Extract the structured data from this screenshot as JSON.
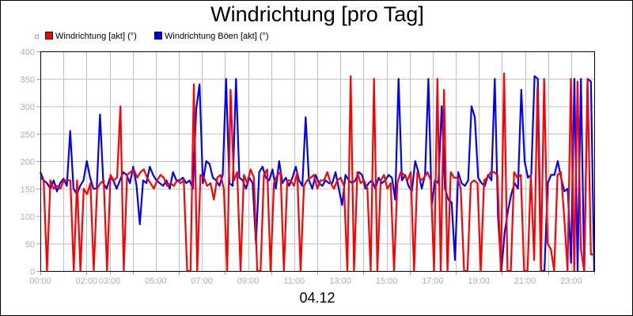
{
  "title": "Windrichtung [pro Tag]",
  "date_label": "04.12",
  "legend": [
    {
      "label": "Windrichtung [akt] (°)",
      "color": "#ff0000"
    },
    {
      "label": "Windrichtung Böen [akt] (°)",
      "color": "#0000ff"
    }
  ],
  "chart_data": {
    "type": "line",
    "title": "Windrichtung [pro Tag]",
    "xlabel": "04.12",
    "ylabel": "",
    "ylim": [
      0,
      400
    ],
    "yticks": [
      0,
      50,
      100,
      150,
      200,
      250,
      300,
      350,
      400
    ],
    "xlim_hours": [
      0,
      24
    ],
    "xtick_labels": [
      {
        "label": "00:00",
        "hour": 0
      },
      {
        "label": "02:00",
        "hour": 2
      },
      {
        "label": "03:00",
        "hour": 3
      },
      {
        "label": "05:00",
        "hour": 5
      },
      {
        "label": "07:00",
        "hour": 7
      },
      {
        "label": "09:00",
        "hour": 9
      },
      {
        "label": "11:00",
        "hour": 11
      },
      {
        "label": "13:00",
        "hour": 13
      },
      {
        "label": "15:00",
        "hour": 15
      },
      {
        "label": "17:00",
        "hour": 17
      },
      {
        "label": "19:00",
        "hour": 19
      },
      {
        "label": "21:00",
        "hour": 21
      },
      {
        "label": "23:00",
        "hour": 23
      }
    ],
    "grid": true,
    "legend_position": "top-left",
    "sample_interval_minutes": 10,
    "series": [
      {
        "name": "Windrichtung Böen [akt] (°)",
        "color": "#0000ff",
        "values": [
          180,
          165,
          160,
          150,
          165,
          145,
          160,
          168,
          155,
          255,
          150,
          140,
          155,
          165,
          200,
          170,
          150,
          150,
          285,
          160,
          150,
          170,
          165,
          150,
          165,
          180,
          175,
          160,
          190,
          155,
          85,
          165,
          160,
          190,
          175,
          165,
          160,
          155,
          165,
          150,
          180,
          165,
          165,
          170,
          160,
          165,
          150,
          295,
          340,
          160,
          200,
          195,
          170,
          165,
          155,
          175,
          350,
          160,
          155,
          350,
          170,
          165,
          150,
          170,
          160,
          50,
          180,
          190,
          170,
          165,
          185,
          150,
          200,
          160,
          170,
          155,
          170,
          190,
          165,
          155,
          280,
          165,
          150,
          175,
          160,
          155,
          165,
          160,
          160,
          180,
          150,
          120,
          175,
          165,
          160,
          165,
          180,
          175,
          150,
          160,
          165,
          150,
          170,
          160,
          165,
          175,
          170,
          130,
          350,
          165,
          175,
          155,
          145,
          200,
          180,
          150,
          175,
          350,
          120,
          165,
          160,
          300,
          150,
          130,
          125,
          20,
          180,
          160,
          155,
          165,
          300,
          280,
          170,
          160,
          155,
          175,
          165,
          350,
          100,
          0,
          70,
          110,
          140,
          160,
          150,
          330,
          200,
          170,
          175,
          355,
          350,
          0,
          0,
          160,
          175,
          175,
          200,
          170,
          145,
          150,
          15,
          350,
          0,
          350,
          0,
          350,
          345,
          0
        ]
      },
      {
        "name": "Windrichtung [akt] (°)",
        "color": "#ff0000",
        "values": [
          170,
          165,
          0,
          165,
          150,
          155,
          150,
          165,
          165,
          165,
          0,
          165,
          0,
          150,
          140,
          160,
          0,
          150,
          160,
          165,
          0,
          175,
          165,
          170,
          300,
          0,
          175,
          180,
          185,
          170,
          180,
          185,
          170,
          160,
          150,
          165,
          175,
          170,
          155,
          160,
          155,
          165,
          160,
          165,
          0,
          0,
          340,
          0,
          175,
          170,
          155,
          160,
          130,
          170,
          175,
          150,
          0,
          330,
          165,
          180,
          0,
          175,
          160,
          185,
          170,
          0,
          0,
          175,
          185,
          0,
          160,
          175,
          180,
          0,
          165,
          165,
          155,
          180,
          0,
          155,
          165,
          170,
          175,
          150,
          165,
          165,
          180,
          160,
          150,
          165,
          170,
          155,
          0,
          355,
          0,
          180,
          160,
          165,
          150,
          0,
          350,
          0,
          165,
          175,
          150,
          160,
          0,
          160,
          180,
          175,
          165,
          180,
          0,
          180,
          165,
          170,
          180,
          165,
          0,
          350,
          0,
          330,
          0,
          180,
          170,
          170,
          150,
          0,
          0,
          160,
          165,
          160,
          0,
          165,
          170,
          180,
          180,
          175,
          0,
          360,
          0,
          0,
          180,
          170,
          175,
          0,
          0,
          175,
          20,
          335,
          0,
          350,
          50,
          40,
          0,
          175,
          180,
          100,
          0,
          350,
          0,
          345,
          40,
          0,
          350,
          30,
          30
        ]
      }
    ]
  }
}
